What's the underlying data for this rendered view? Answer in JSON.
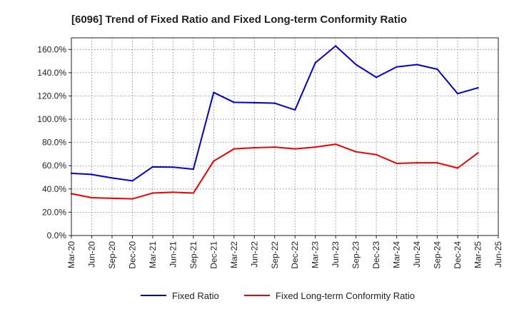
{
  "chart_data": {
    "type": "line",
    "title": "[6096]  Trend of Fixed Ratio and Fixed Long-term Conformity Ratio",
    "xlabel": "",
    "ylabel": "",
    "categories": [
      "Mar-20",
      "Jun-20",
      "Sep-20",
      "Dec-20",
      "Mar-21",
      "Jun-21",
      "Sep-21",
      "Dec-21",
      "Mar-22",
      "Jun-22",
      "Sep-22",
      "Dec-22",
      "Mar-23",
      "Jun-23",
      "Sep-23",
      "Dec-23",
      "Mar-24",
      "Jun-24",
      "Sep-24",
      "Dec-24",
      "Mar-25",
      "Jun-25"
    ],
    "ylim": [
      0,
      170
    ],
    "yticks": [
      0,
      20,
      40,
      60,
      80,
      100,
      120,
      140,
      160
    ],
    "ytick_labels": [
      "0.0%",
      "20.0%",
      "40.0%",
      "60.0%",
      "80.0%",
      "100.0%",
      "120.0%",
      "140.0%",
      "160.0%"
    ],
    "grid": true,
    "legend_position": "bottom",
    "series": [
      {
        "name": "Fixed Ratio",
        "color": "#0000cc",
        "values": [
          53.5,
          52.5,
          49.5,
          47.0,
          59.0,
          58.8,
          57.0,
          123.0,
          114.5,
          114.2,
          113.8,
          108.0,
          148.5,
          163.0,
          147.0,
          136.0,
          145.0,
          147.0,
          143.0,
          122.0,
          127.0,
          null
        ]
      },
      {
        "name": "Fixed Long-term Conformity Ratio",
        "color": "#ee0000",
        "values": [
          36.0,
          32.5,
          32.0,
          31.5,
          36.5,
          37.2,
          36.5,
          64.0,
          74.5,
          75.5,
          76.0,
          74.5,
          76.0,
          78.5,
          72.0,
          69.5,
          62.0,
          62.5,
          62.5,
          58.0,
          71.0,
          null
        ]
      }
    ]
  }
}
